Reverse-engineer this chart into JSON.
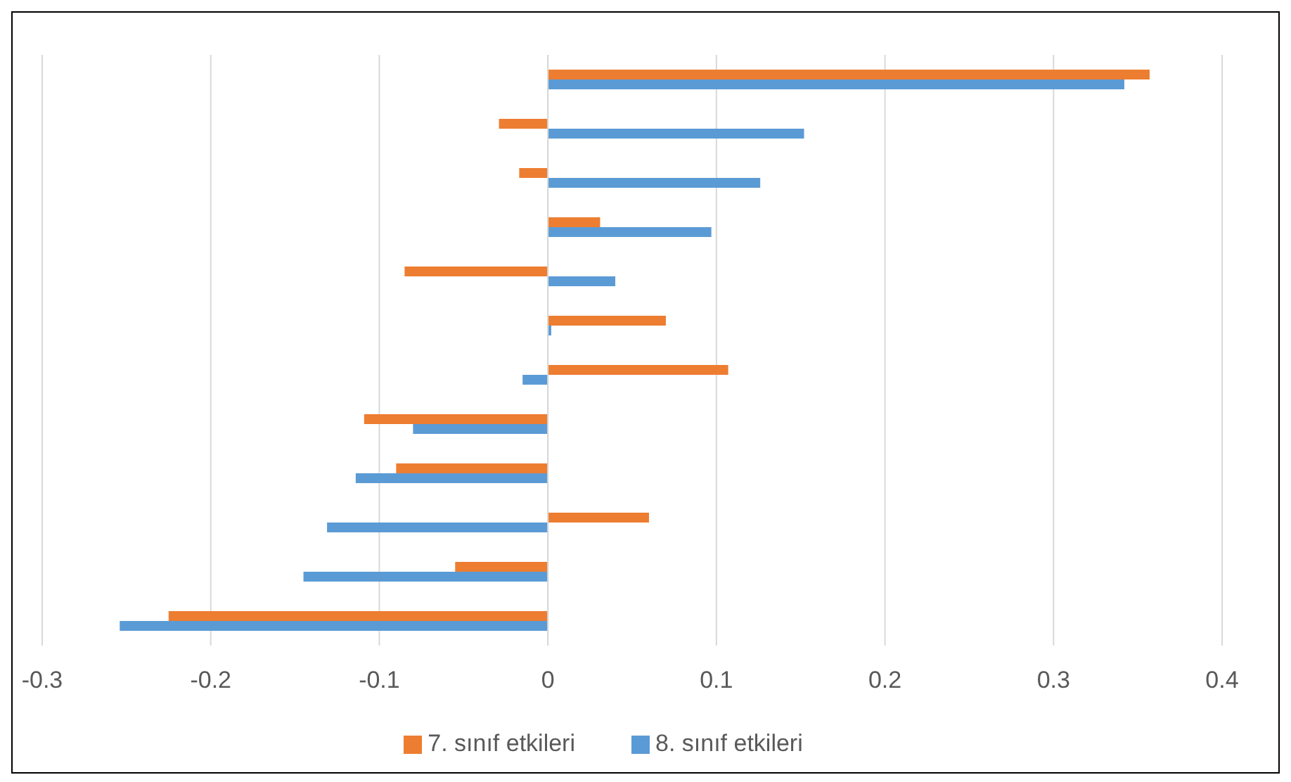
{
  "chart_data": {
    "type": "bar",
    "orientation": "horizontal",
    "categories": [
      null,
      null,
      null,
      null,
      null,
      null,
      null,
      null,
      null,
      null,
      null,
      null
    ],
    "series": [
      {
        "name": "7. sınıf etkileri",
        "color": "#ed7d31",
        "values": [
          0.357,
          -0.029,
          -0.017,
          0.031,
          -0.085,
          0.07,
          0.107,
          -0.109,
          -0.09,
          0.06,
          -0.055,
          -0.225
        ]
      },
      {
        "name": "8. sınıf etkileri",
        "color": "#5b9bd5",
        "values": [
          0.342,
          0.152,
          0.126,
          0.097,
          0.04,
          0.002,
          -0.015,
          -0.08,
          -0.114,
          -0.131,
          -0.145,
          -0.254
        ]
      }
    ],
    "xlim": [
      -0.3,
      0.4
    ],
    "xticks": [
      -0.3,
      -0.2,
      -0.1,
      0,
      0.1,
      0.2,
      0.3,
      0.4
    ],
    "grid": "x",
    "legend": "bottom"
  }
}
